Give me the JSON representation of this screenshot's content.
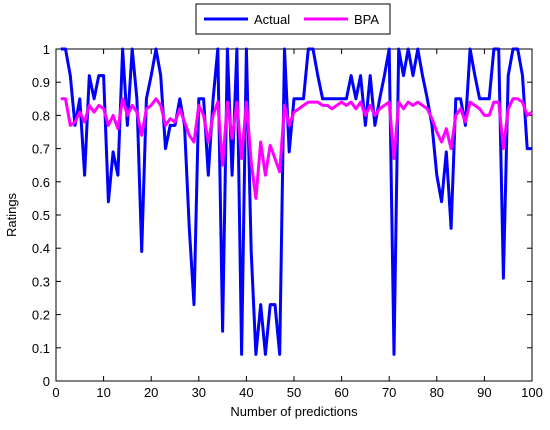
{
  "chart_data": {
    "type": "line",
    "xlabel": "Number of predictions",
    "ylabel": "Ratings",
    "xlim": [
      0,
      100
    ],
    "ylim": [
      0,
      1
    ],
    "xticks": [
      0,
      10,
      20,
      30,
      40,
      50,
      60,
      70,
      80,
      90,
      100
    ],
    "yticks": [
      0,
      0.1,
      0.2,
      0.3,
      0.4,
      0.5,
      0.6,
      0.7,
      0.8,
      0.9,
      1
    ],
    "xtick_labels": [
      "0",
      "10",
      "20",
      "30",
      "40",
      "50",
      "60",
      "70",
      "80",
      "90",
      "100"
    ],
    "ytick_labels": [
      "0",
      "0.1",
      "0.2",
      "0.3",
      "0.4",
      "0.5",
      "0.6",
      "0.7",
      "0.8",
      "0.9",
      "1"
    ],
    "legend": {
      "placement": "top-center",
      "entries": [
        "Actual",
        "BPA"
      ]
    },
    "grid": false,
    "series": [
      {
        "name": "Actual",
        "color": "#0000ff",
        "x": [
          1,
          2,
          3,
          4,
          5,
          6,
          7,
          8,
          9,
          10,
          11,
          12,
          13,
          14,
          15,
          16,
          17,
          18,
          19,
          20,
          21,
          22,
          23,
          24,
          25,
          26,
          27,
          28,
          29,
          30,
          31,
          32,
          33,
          34,
          35,
          36,
          37,
          38,
          39,
          40,
          41,
          42,
          43,
          44,
          45,
          46,
          47,
          48,
          49,
          50,
          51,
          52,
          53,
          54,
          55,
          56,
          57,
          58,
          59,
          60,
          61,
          62,
          63,
          64,
          65,
          66,
          67,
          68,
          69,
          70,
          71,
          72,
          73,
          74,
          75,
          76,
          77,
          78,
          79,
          80,
          81,
          82,
          83,
          84,
          85,
          86,
          87,
          88,
          89,
          90,
          91,
          92,
          93,
          94,
          95,
          96,
          97,
          98,
          99,
          100
        ],
        "values": [
          1,
          1,
          0.92,
          0.77,
          0.85,
          0.62,
          0.92,
          0.85,
          0.92,
          0.92,
          0.54,
          0.69,
          0.62,
          1,
          0.77,
          1,
          0.85,
          0.39,
          0.85,
          0.92,
          1,
          0.92,
          0.7,
          0.77,
          0.77,
          0.85,
          0.77,
          0.46,
          0.23,
          0.85,
          0.85,
          0.62,
          0.85,
          1,
          0.15,
          1,
          0.62,
          1,
          0.08,
          1,
          0.39,
          0.08,
          0.23,
          0.08,
          0.23,
          0.23,
          0.08,
          1,
          0.69,
          0.85,
          0.85,
          0.85,
          1,
          1,
          0.92,
          0.85,
          0.85,
          0.85,
          0.85,
          0.85,
          0.85,
          0.92,
          0.85,
          0.92,
          0.77,
          0.92,
          0.77,
          0.85,
          0.92,
          1,
          0.08,
          1,
          0.92,
          1,
          0.92,
          1,
          0.92,
          0.85,
          0.77,
          0.62,
          0.54,
          0.69,
          0.46,
          0.85,
          0.85,
          0.77,
          1,
          0.92,
          0.85,
          0.85,
          0.85,
          1,
          1,
          0.31,
          0.92,
          1,
          1,
          0.92,
          0.7,
          0.7
        ]
      },
      {
        "name": "BPA",
        "color": "#ff00ff",
        "x": [
          1,
          2,
          3,
          4,
          5,
          6,
          7,
          8,
          9,
          10,
          11,
          12,
          13,
          14,
          15,
          16,
          17,
          18,
          19,
          20,
          21,
          22,
          23,
          24,
          25,
          26,
          27,
          28,
          29,
          30,
          31,
          32,
          33,
          34,
          35,
          36,
          37,
          38,
          39,
          40,
          41,
          42,
          43,
          44,
          45,
          46,
          47,
          48,
          49,
          50,
          51,
          52,
          53,
          54,
          55,
          56,
          57,
          58,
          59,
          60,
          61,
          62,
          63,
          64,
          65,
          66,
          67,
          68,
          69,
          70,
          71,
          72,
          73,
          74,
          75,
          76,
          77,
          78,
          79,
          80,
          81,
          82,
          83,
          84,
          85,
          86,
          87,
          88,
          89,
          90,
          91,
          92,
          93,
          94,
          95,
          96,
          97,
          98,
          99,
          100
        ],
        "values": [
          0.85,
          0.85,
          0.77,
          0.78,
          0.81,
          0.78,
          0.83,
          0.81,
          0.83,
          0.82,
          0.77,
          0.8,
          0.76,
          0.85,
          0.8,
          0.83,
          0.81,
          0.74,
          0.82,
          0.83,
          0.85,
          0.83,
          0.77,
          0.79,
          0.78,
          0.82,
          0.78,
          0.74,
          0.72,
          0.83,
          0.8,
          0.72,
          0.8,
          0.84,
          0.65,
          0.84,
          0.73,
          0.84,
          0.67,
          0.84,
          0.66,
          0.55,
          0.72,
          0.62,
          0.71,
          0.67,
          0.63,
          0.83,
          0.77,
          0.81,
          0.82,
          0.83,
          0.84,
          0.84,
          0.84,
          0.83,
          0.83,
          0.82,
          0.83,
          0.84,
          0.83,
          0.84,
          0.82,
          0.84,
          0.8,
          0.83,
          0.8,
          0.82,
          0.83,
          0.84,
          0.67,
          0.84,
          0.82,
          0.84,
          0.83,
          0.84,
          0.83,
          0.82,
          0.79,
          0.75,
          0.72,
          0.76,
          0.7,
          0.8,
          0.82,
          0.78,
          0.84,
          0.83,
          0.82,
          0.8,
          0.8,
          0.84,
          0.84,
          0.7,
          0.82,
          0.85,
          0.85,
          0.84,
          0.8,
          0.81
        ]
      }
    ]
  }
}
